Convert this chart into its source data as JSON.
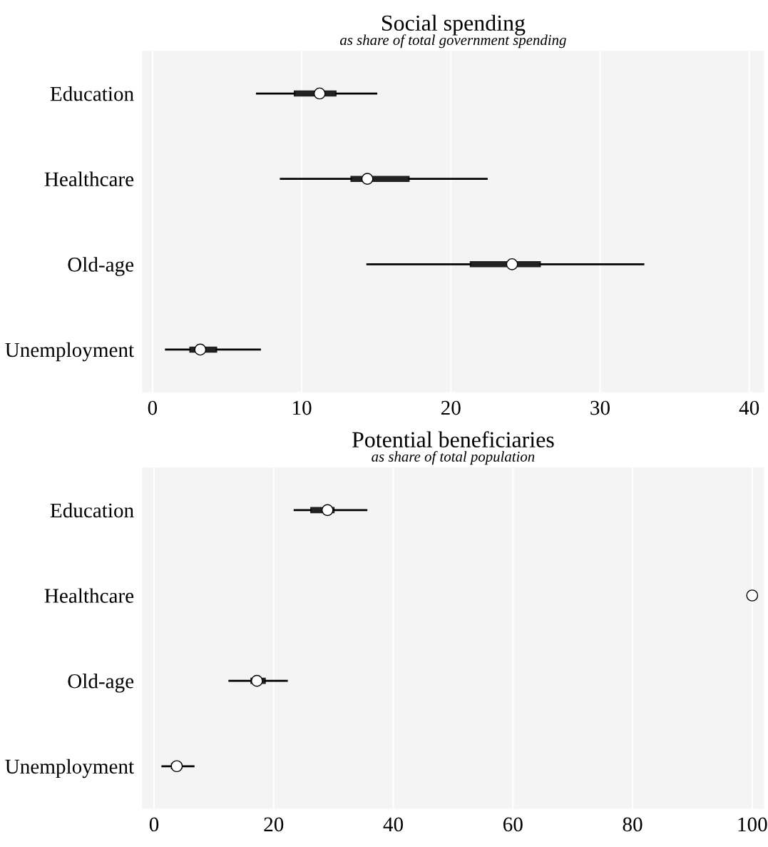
{
  "chart_data": [
    {
      "type": "box",
      "title": "Social spending",
      "subtitle": "as share of total government spending",
      "orientation": "horizontal",
      "categories": [
        "Education",
        "Healthcare",
        "Old-age",
        "Unemployment"
      ],
      "boxes": [
        {
          "low": 7.0,
          "q1": 9.5,
          "median": 11.2,
          "q3": 12.3,
          "high": 15.0
        },
        {
          "low": 8.6,
          "q1": 13.3,
          "median": 14.4,
          "q3": 17.2,
          "high": 22.4
        },
        {
          "low": 14.4,
          "q1": 21.3,
          "median": 24.1,
          "q3": 26.0,
          "high": 32.9
        },
        {
          "low": 0.9,
          "q1": 2.5,
          "median": 3.2,
          "q3": 4.3,
          "high": 7.2
        }
      ],
      "color": "#222222",
      "xlim": [
        -0.7,
        41
      ],
      "xticks": [
        0,
        10,
        20,
        30,
        40
      ],
      "grid": "x"
    },
    {
      "type": "box",
      "title": "Potential beneficiaries",
      "subtitle": "as share of total population",
      "orientation": "horizontal",
      "categories": [
        "Education",
        "Healthcare",
        "Old-age",
        "Unemployment"
      ],
      "boxes": [
        {
          "low": 23.5,
          "q1": 26.2,
          "median": 29.0,
          "q3": 30.1,
          "high": 35.5
        },
        {
          "low": 100,
          "q1": 100,
          "median": 100,
          "q3": 100,
          "high": 100
        },
        {
          "low": 12.6,
          "q1": 16.2,
          "median": 17.2,
          "q3": 18.6,
          "high": 22.2
        },
        {
          "low": 1.4,
          "q1": 2.9,
          "median": 3.8,
          "q3": 4.6,
          "high": 6.6
        }
      ],
      "color": "#222222",
      "xlim": [
        -2,
        102
      ],
      "xticks": [
        0,
        20,
        40,
        60,
        80,
        100
      ],
      "grid": "x"
    }
  ]
}
